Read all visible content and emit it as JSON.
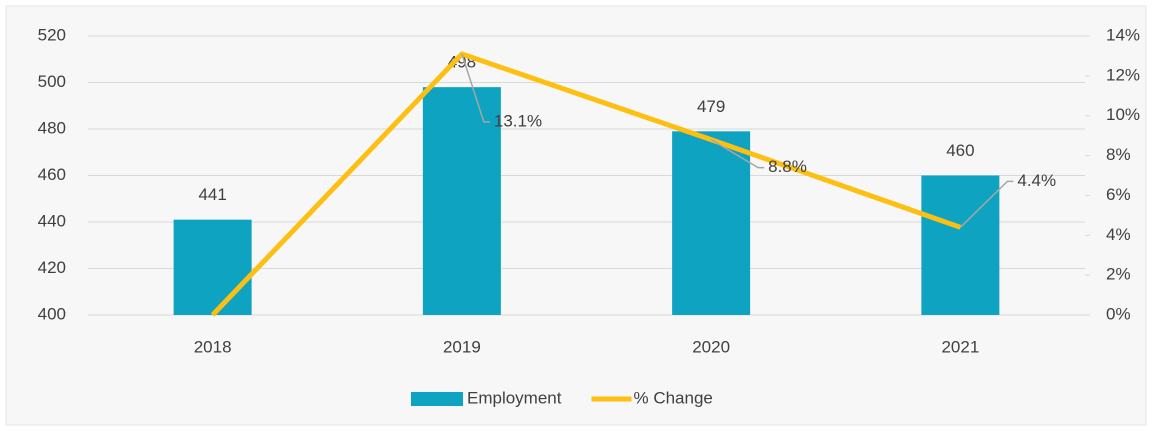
{
  "chart_data": {
    "type": "bar",
    "categories": [
      "2018",
      "2019",
      "2020",
      "2021"
    ],
    "series": [
      {
        "name": "Employment",
        "type": "bar",
        "color": "#0fa3c2",
        "values": [
          441,
          498,
          479,
          460
        ]
      },
      {
        "name": "% Change",
        "type": "line",
        "axis": "y2",
        "color": "#fdbf12",
        "values": [
          0,
          13.1,
          8.8,
          4.4
        ],
        "value_labels": [
          null,
          "13.1%",
          "8.8%",
          "4.4%"
        ]
      }
    ],
    "ylim": [
      400,
      520
    ],
    "yticks": [
      400,
      420,
      440,
      460,
      480,
      500,
      520
    ],
    "y2lim": [
      0,
      14
    ],
    "y2ticks": [
      {
        "value": 0,
        "label": "0%"
      },
      {
        "value": 2,
        "label": "2%"
      },
      {
        "value": 4,
        "label": "4%"
      },
      {
        "value": 6,
        "label": "6%"
      },
      {
        "value": 8,
        "label": "8%"
      },
      {
        "value": 10,
        "label": "10%"
      },
      {
        "value": 12,
        "label": "12%"
      },
      {
        "value": 14,
        "label": "14%"
      }
    ],
    "grid": true,
    "legend": "bottom"
  }
}
